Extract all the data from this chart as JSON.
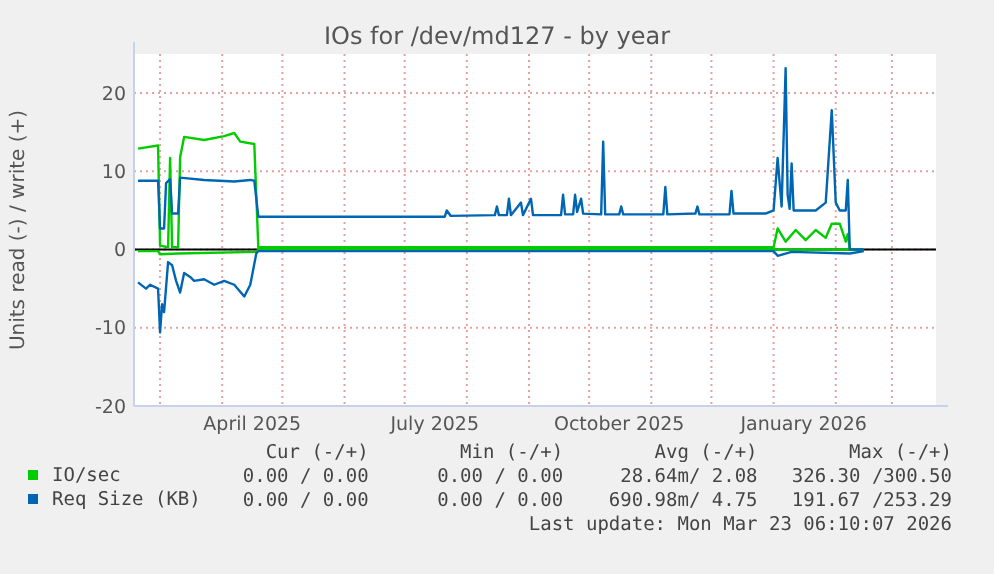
{
  "chart_data": {
    "type": "line",
    "title": "IOs for /dev/md127 - by year",
    "ylabel": "Units read (-) / write (+)",
    "xlim": [
      "2025-02-16",
      "2026-03-23"
    ],
    "ylim": [
      -20,
      25
    ],
    "yticks": [
      -20,
      -10,
      0,
      10,
      20
    ],
    "xticks": [
      {
        "value": "2025-03-01",
        "label": null
      },
      {
        "value": "2025-04-01",
        "label": null
      },
      {
        "value": "2025-04-16",
        "label": "April 2025"
      },
      {
        "value": "2025-05-01",
        "label": null
      },
      {
        "value": "2025-06-01",
        "label": null
      },
      {
        "value": "2025-07-01",
        "label": null
      },
      {
        "value": "2025-07-16",
        "label": "July 2025"
      },
      {
        "value": "2025-08-01",
        "label": null
      },
      {
        "value": "2025-09-01",
        "label": null
      },
      {
        "value": "2025-10-01",
        "label": null
      },
      {
        "value": "2025-10-16",
        "label": "October 2025"
      },
      {
        "value": "2025-11-01",
        "label": null
      },
      {
        "value": "2025-12-01",
        "label": null
      },
      {
        "value": "2026-01-01",
        "label": null
      },
      {
        "value": "2026-01-16",
        "label": "January 2026"
      },
      {
        "value": "2026-02-01",
        "label": null
      },
      {
        "value": "2026-03-01",
        "label": null
      }
    ],
    "grid": true,
    "legend": "bottom",
    "ref_lines": [
      {
        "axis": "y",
        "value": 0,
        "label": null,
        "color": "#000000"
      }
    ],
    "series": [
      {
        "name": "IO/sec",
        "color": "#00cc00",
        "x": [
          "2025-02-18",
          "2025-02-28",
          "2025-03-01",
          "2025-03-05",
          "2025-03-06",
          "2025-03-07",
          "2025-03-10",
          "2025-03-11",
          "2025-03-13",
          "2025-03-23",
          "2025-04-02",
          "2025-04-07",
          "2025-04-10",
          "2025-04-17",
          "2025-04-19",
          "2026-01-01",
          "2026-01-03",
          "2026-01-07",
          "2026-01-12",
          "2026-01-17",
          "2026-01-22",
          "2026-01-27",
          "2026-01-30",
          "2026-02-03",
          "2026-02-06",
          "2026-02-07",
          "2026-02-08",
          "2026-02-15"
        ],
        "values": [
          12.9,
          13.3,
          0.5,
          0.3,
          11.7,
          0.3,
          0.3,
          11.8,
          14.4,
          14,
          14.5,
          14.9,
          13.8,
          13.5,
          0.3,
          0.3,
          2.7,
          1,
          2.5,
          1.2,
          2.5,
          1.5,
          3.3,
          3.3,
          1,
          2,
          0,
          0
        ]
      },
      {
        "color": "#00cc00",
        "x": [
          "2025-02-18",
          "2025-02-28",
          "2025-03-01",
          "2025-03-10",
          "2025-04-18",
          "2025-04-19",
          "2026-02-15"
        ],
        "values": [
          -0.2,
          -0.2,
          -0.6,
          -0.5,
          -0.3,
          0,
          0
        ]
      },
      {
        "name": "Req Size (KB)",
        "color": "#0066b3",
        "x": [
          "2025-02-18",
          "2025-02-28",
          "2025-03-01",
          "2025-03-03",
          "2025-03-04",
          "2025-03-06",
          "2025-03-07",
          "2025-03-10",
          "2025-03-11",
          "2025-03-23",
          "2025-04-07",
          "2025-04-15",
          "2025-04-17",
          "2025-04-19",
          "2025-07-21",
          "2025-07-22",
          "2025-07-24",
          "2025-08-15",
          "2025-08-16",
          "2025-08-17",
          "2025-08-21",
          "2025-08-22",
          "2025-08-23",
          "2025-08-28",
          "2025-08-29",
          "2025-09-02",
          "2025-09-03",
          "2025-09-17",
          "2025-09-18",
          "2025-09-19",
          "2025-09-23",
          "2025-09-24",
          "2025-09-25",
          "2025-09-27",
          "2025-09-28",
          "2025-10-07",
          "2025-10-08",
          "2025-10-09",
          "2025-10-16",
          "2025-10-17",
          "2025-10-18",
          "2025-11-07",
          "2025-11-08",
          "2025-11-09",
          "2025-11-23",
          "2025-11-24",
          "2025-11-25",
          "2025-12-10",
          "2025-12-11",
          "2025-12-12",
          "2025-12-28",
          "2026-01-01",
          "2026-01-03",
          "2026-01-05",
          "2026-01-07",
          "2026-01-08",
          "2026-01-09",
          "2026-01-10",
          "2026-01-11",
          "2026-01-22",
          "2026-01-27",
          "2026-01-30",
          "2026-02-01",
          "2026-02-03",
          "2026-02-06",
          "2026-02-07",
          "2026-02-08",
          "2026-02-15"
        ],
        "values": [
          8.8,
          8.8,
          2.7,
          2.7,
          8.5,
          9,
          4.6,
          4.6,
          9.2,
          8.9,
          8.7,
          8.9,
          8.8,
          4.2,
          4.2,
          5,
          4.3,
          4.4,
          5.5,
          4.4,
          4.4,
          6.5,
          4.4,
          6,
          4.4,
          6.5,
          4.4,
          4.4,
          7,
          4.5,
          4.5,
          7,
          4.8,
          6.5,
          4.6,
          4.5,
          13.8,
          4.5,
          4.5,
          5.5,
          4.5,
          4.5,
          8,
          4.5,
          4.6,
          5.5,
          4.5,
          4.5,
          7.5,
          4.6,
          4.6,
          5,
          11.7,
          5.5,
          23.2,
          7,
          5.2,
          11,
          5,
          5,
          6,
          17.8,
          6,
          5,
          5,
          8.9,
          0,
          0
        ]
      },
      {
        "color": "#0066b3",
        "x": [
          "2025-02-18",
          "2025-02-22",
          "2025-02-24",
          "2025-02-28",
          "2025-03-01",
          "2025-03-02",
          "2025-03-03",
          "2025-03-05",
          "2025-03-07",
          "2025-03-09",
          "2025-03-11",
          "2025-03-13",
          "2025-03-16",
          "2025-03-18",
          "2025-03-23",
          "2025-03-28",
          "2025-04-02",
          "2025-04-07",
          "2025-04-12",
          "2025-04-15",
          "2025-04-18",
          "2025-04-19",
          "2025-07-21",
          "2026-01-01",
          "2026-01-03",
          "2026-01-10",
          "2026-02-08",
          "2026-02-15"
        ],
        "values": [
          -4.2,
          -5,
          -4.5,
          -5,
          -10.6,
          -7,
          -8,
          -1.6,
          -2,
          -4,
          -5.5,
          -3,
          -3.5,
          -4,
          -3.8,
          -4.5,
          -4,
          -4.5,
          -6,
          -4.5,
          -0.5,
          -0.2,
          -0.2,
          -0.2,
          -0.8,
          -0.3,
          -0.5,
          -0.2
        ]
      }
    ],
    "annotations": [
      "Cur (-/+)        Min (-/+)        Avg (-/+)        Max (-/+)",
      "0.00 / 0.00      0.00 / 0.00     28.64m/ 2.08   326.30 /300.50",
      "0.00 / 0.00      0.00 / 0.00    690.98m/ 4.75   191.67 /253.29",
      "Last update: Mon Mar 23 06:10:07 2026"
    ]
  }
}
